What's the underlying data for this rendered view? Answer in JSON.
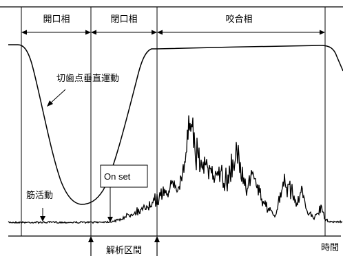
{
  "phases": [
    {
      "id": "open",
      "label": "開口相"
    },
    {
      "id": "close",
      "label": "閉口相"
    },
    {
      "id": "occlusal",
      "label": "咬合相"
    }
  ],
  "annotations": {
    "incisor_motion": "切歯点垂直運動",
    "muscle_activity": "筋活動",
    "onset": "On set",
    "analysis_interval": "解析区間",
    "time_axis": "時間"
  }
}
